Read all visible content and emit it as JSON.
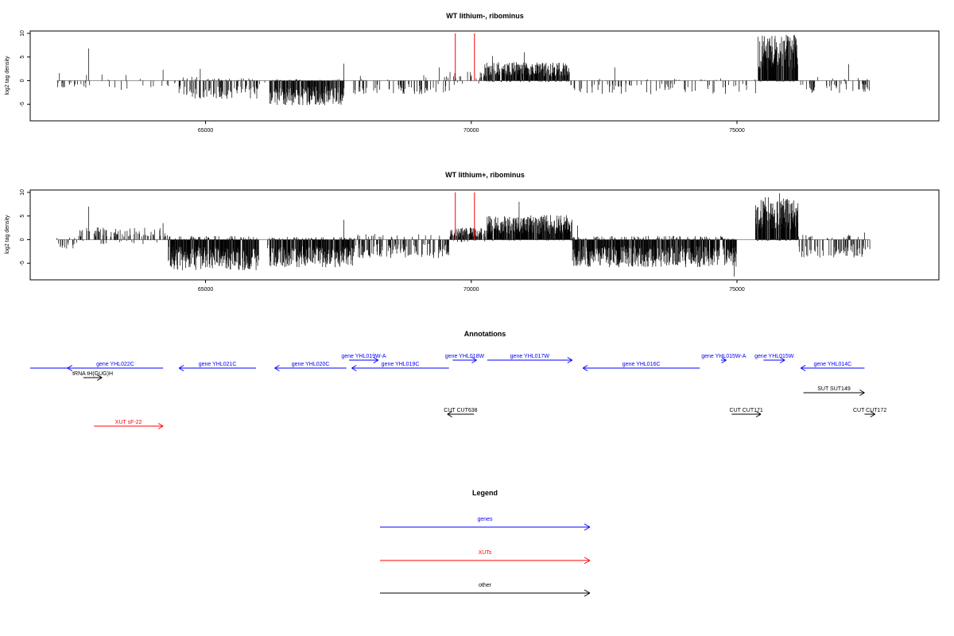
{
  "chart_data": [
    {
      "type": "bar",
      "title": "WT lithium-, ribominus",
      "ylabel": "log2 tag density",
      "xlim": [
        61700,
        78800
      ],
      "ylim": [
        -8.5,
        10.5
      ],
      "xticks": [
        65000,
        70000,
        75000
      ],
      "xtick_labels": [
        "65000",
        "70000",
        "75000"
      ],
      "yticks": [
        -5,
        0,
        5,
        10
      ],
      "ytick_labels": [
        "-5",
        "0",
        "5",
        "10"
      ],
      "markers": [
        69700,
        70060
      ],
      "segments": [
        {
          "start": 62200,
          "end": 62900,
          "pos": 0.6,
          "neg": 1.2,
          "density": 0.15
        },
        {
          "start": 63000,
          "end": 64000,
          "pos": 0.4,
          "neg": 1.5,
          "density": 0.05
        },
        {
          "start": 64000,
          "end": 64500,
          "pos": 0.5,
          "neg": 1.0,
          "density": 0.05
        },
        {
          "start": 64500,
          "end": 66000,
          "pos": 0.8,
          "neg": 3.0,
          "density": 0.45
        },
        {
          "start": 66000,
          "end": 66200,
          "pos": 0.2,
          "neg": 1.0,
          "density": 0.05
        },
        {
          "start": 66200,
          "end": 67600,
          "pos": 0.3,
          "neg": 4.0,
          "density": 0.8
        },
        {
          "start": 67600,
          "end": 69600,
          "pos": 1.2,
          "neg": 2.2,
          "density": 0.2
        },
        {
          "start": 69600,
          "end": 70250,
          "pos": 1.5,
          "neg": 1.0,
          "density": 0.2
        },
        {
          "start": 70250,
          "end": 71850,
          "pos": 3.0,
          "neg": 0.3,
          "density": 0.9
        },
        {
          "start": 71850,
          "end": 75400,
          "pos": 0.5,
          "neg": 2.2,
          "density": 0.15
        },
        {
          "start": 75400,
          "end": 76150,
          "pos": 7.5,
          "neg": 0.2,
          "density": 1.0
        },
        {
          "start": 76150,
          "end": 77500,
          "pos": 0.8,
          "neg": 2.0,
          "density": 0.2
        }
      ],
      "spikes": [
        [
          62250,
          1.6
        ],
        [
          62800,
          6.8
        ],
        [
          62760,
          1.2
        ],
        [
          63050,
          1.3
        ],
        [
          63500,
          1.2
        ],
        [
          64200,
          2.3
        ],
        [
          64900,
          2.5
        ],
        [
          67600,
          3.6
        ],
        [
          69400,
          2.8
        ],
        [
          70400,
          5.2
        ],
        [
          71000,
          6.0
        ],
        [
          72700,
          2.8
        ],
        [
          77100,
          3.5
        ]
      ],
      "seed": 11
    },
    {
      "type": "bar",
      "title": "WT lithium+, ribominus",
      "ylabel": "log2 tag density",
      "xlim": [
        61700,
        78800
      ],
      "ylim": [
        -8.5,
        10.5
      ],
      "xticks": [
        65000,
        70000,
        75000
      ],
      "xtick_labels": [
        "65000",
        "70000",
        "75000"
      ],
      "yticks": [
        -5,
        0,
        5,
        10
      ],
      "ytick_labels": [
        "-5",
        "0",
        "5",
        "10"
      ],
      "markers": [
        69700,
        70060
      ],
      "segments": [
        {
          "start": 62200,
          "end": 62600,
          "pos": 0.5,
          "neg": 1.5,
          "density": 0.3
        },
        {
          "start": 62600,
          "end": 64300,
          "pos": 2.0,
          "neg": 1.0,
          "density": 0.35
        },
        {
          "start": 64300,
          "end": 66000,
          "pos": 0.8,
          "neg": 5.0,
          "density": 0.95
        },
        {
          "start": 66000,
          "end": 66200,
          "pos": 0.2,
          "neg": 1.5,
          "density": 0.1
        },
        {
          "start": 66200,
          "end": 67800,
          "pos": 0.6,
          "neg": 4.5,
          "density": 0.9
        },
        {
          "start": 67800,
          "end": 69600,
          "pos": 1.2,
          "neg": 3.0,
          "density": 0.45
        },
        {
          "start": 69600,
          "end": 70300,
          "pos": 2.0,
          "neg": 0.5,
          "density": 0.7
        },
        {
          "start": 70300,
          "end": 71900,
          "pos": 4.0,
          "neg": 0.2,
          "density": 1.0
        },
        {
          "start": 71900,
          "end": 75000,
          "pos": 0.8,
          "neg": 4.5,
          "density": 0.9
        },
        {
          "start": 75000,
          "end": 75350,
          "pos": 0.2,
          "neg": 0.5,
          "density": 0.05
        },
        {
          "start": 75350,
          "end": 76150,
          "pos": 7.0,
          "neg": 0.3,
          "density": 1.0
        },
        {
          "start": 76150,
          "end": 77500,
          "pos": 1.0,
          "neg": 3.0,
          "density": 0.3
        }
      ],
      "spikes": [
        [
          62800,
          7.0
        ],
        [
          64200,
          3.5
        ],
        [
          67600,
          4.2
        ],
        [
          70900,
          8.0
        ],
        [
          72000,
          3.0
        ],
        [
          74950,
          -7.8
        ],
        [
          75800,
          9.8
        ],
        [
          77400,
          1.5
        ]
      ],
      "seed": 29
    }
  ],
  "annotations": {
    "title": "Annotations",
    "genes": [
      {
        "label": "gene YHL022C",
        "start": 62400,
        "end": 64200,
        "dir": -1,
        "row": 2,
        "color": "#0000ff"
      },
      {
        "label": "gene YHL021C",
        "start": 64500,
        "end": 65950,
        "dir": -1,
        "row": 2,
        "color": "#0000ff"
      },
      {
        "label": "gene YHL020C",
        "start": 66300,
        "end": 67650,
        "dir": -1,
        "row": 2,
        "color": "#0000ff"
      },
      {
        "label": "gene YHL019W-A",
        "start": 67700,
        "end": 68250,
        "dir": 1,
        "row": 1,
        "color": "#0000ff"
      },
      {
        "label": "gene YHL019C",
        "start": 67750,
        "end": 69580,
        "dir": -1,
        "row": 2,
        "color": "#0000ff"
      },
      {
        "label": "gene YHL018W",
        "start": 69650,
        "end": 70100,
        "dir": 1,
        "row": 1,
        "color": "#0000ff"
      },
      {
        "label": "gene YHL017W",
        "start": 70300,
        "end": 71900,
        "dir": 1,
        "row": 1,
        "color": "#0000ff"
      },
      {
        "label": "gene YHL016C",
        "start": 72100,
        "end": 74300,
        "dir": -1,
        "row": 2,
        "color": "#0000ff"
      },
      {
        "label": "gene YHL015W-A",
        "start": 74700,
        "end": 74800,
        "dir": 1,
        "row": 1,
        "color": "#0000ff"
      },
      {
        "label": "gene YHL015W",
        "start": 75500,
        "end": 75900,
        "dir": 1,
        "row": 1,
        "color": "#0000ff"
      },
      {
        "label": "gene YHL014C",
        "start": 76200,
        "end": 77400,
        "dir": -1,
        "row": 2,
        "color": "#0000ff"
      },
      {
        "label": "tRNA tH(GUG)H",
        "start": 62700,
        "end": 63050,
        "dir": 1,
        "row": 3,
        "color": "#000000"
      },
      {
        "label": "SUT SUT149",
        "start": 76250,
        "end": 77400,
        "dir": 1,
        "row": 4,
        "color": "#000000"
      },
      {
        "label": "CUT CUT638",
        "start": 69550,
        "end": 70050,
        "dir": -1,
        "row": 5,
        "color": "#000000"
      },
      {
        "label": "CUT CUT171",
        "start": 74900,
        "end": 75450,
        "dir": 1,
        "row": 5,
        "color": "#000000"
      },
      {
        "label": "CUT CUT172",
        "start": 77400,
        "end": 77600,
        "dir": 1,
        "row": 5,
        "color": "#000000"
      },
      {
        "label": "XUT sF-22",
        "start": 62900,
        "end": 64200,
        "dir": 1,
        "row": 6,
        "color": "#ff0000"
      }
    ],
    "extra_line": {
      "start": 61700,
      "end": 62700,
      "row": 2,
      "color": "#0000ff"
    }
  },
  "legend": {
    "title": "Legend",
    "items": [
      {
        "label": "genes",
        "color": "#0000ff"
      },
      {
        "label": "XUTs",
        "color": "#ff0000"
      },
      {
        "label": "other",
        "color": "#000000"
      }
    ]
  }
}
